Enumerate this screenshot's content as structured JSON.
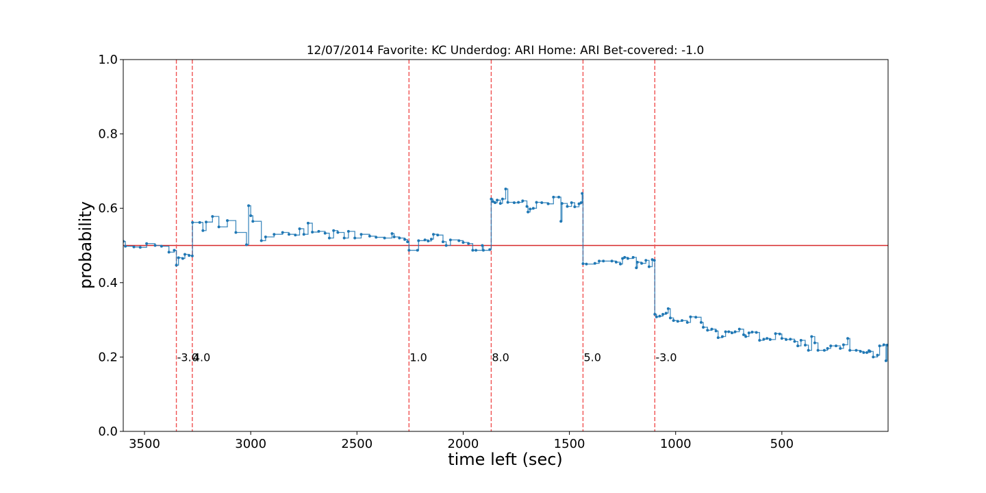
{
  "chart_data": {
    "type": "line",
    "title": "12/07/2014 Favorite: KC Underdog: ARI Home: ARI Bet-covered: -1.0",
    "xlabel": "time left (sec)",
    "ylabel": "probability",
    "xlim": [
      3600,
      0
    ],
    "ylim": [
      0.0,
      1.0
    ],
    "x_ticks": [
      3500,
      3000,
      2500,
      2000,
      1500,
      1000,
      500
    ],
    "x_tick_labels": [
      "3500",
      "3000",
      "2500",
      "2000",
      "1500",
      "1000",
      "500"
    ],
    "y_ticks": [
      0.0,
      0.2,
      0.4,
      0.6,
      0.8,
      1.0
    ],
    "y_tick_labels": [
      "0.0",
      "0.2",
      "0.4",
      "0.6",
      "0.8",
      "1.0"
    ],
    "grid": false,
    "reference_line": {
      "y": 0.5,
      "color": "#d62728"
    },
    "score_changes": [
      {
        "x": 3350,
        "label": "-3.0"
      },
      {
        "x": 3275,
        "label": "4.0"
      },
      {
        "x": 2255,
        "label": "1.0"
      },
      {
        "x": 1868,
        "label": "8.0"
      },
      {
        "x": 1436,
        "label": "5.0"
      },
      {
        "x": 1098,
        "label": "-3.0"
      }
    ],
    "series": [
      {
        "color": "#1f77b4",
        "points": [
          [
            3600,
            0.511
          ],
          [
            3590,
            0.498
          ],
          [
            3550,
            0.496
          ],
          [
            3520,
            0.495
          ],
          [
            3490,
            0.505
          ],
          [
            3450,
            0.5
          ],
          [
            3420,
            0.498
          ],
          [
            3385,
            0.482
          ],
          [
            3360,
            0.487
          ],
          [
            3350,
            0.447
          ],
          [
            3340,
            0.467
          ],
          [
            3320,
            0.465
          ],
          [
            3310,
            0.476
          ],
          [
            3290,
            0.473
          ],
          [
            3275,
            0.472
          ],
          [
            3274,
            0.562
          ],
          [
            3240,
            0.562
          ],
          [
            3225,
            0.54
          ],
          [
            3210,
            0.563
          ],
          [
            3180,
            0.578
          ],
          [
            3150,
            0.55
          ],
          [
            3110,
            0.567
          ],
          [
            3070,
            0.535
          ],
          [
            3020,
            0.502
          ],
          [
            3010,
            0.607
          ],
          [
            3000,
            0.58
          ],
          [
            2990,
            0.565
          ],
          [
            2950,
            0.513
          ],
          [
            2930,
            0.523
          ],
          [
            2890,
            0.53
          ],
          [
            2850,
            0.535
          ],
          [
            2820,
            0.53
          ],
          [
            2790,
            0.528
          ],
          [
            2770,
            0.545
          ],
          [
            2750,
            0.53
          ],
          [
            2730,
            0.56
          ],
          [
            2710,
            0.536
          ],
          [
            2680,
            0.538
          ],
          [
            2650,
            0.533
          ],
          [
            2630,
            0.52
          ],
          [
            2610,
            0.54
          ],
          [
            2590,
            0.535
          ],
          [
            2560,
            0.52
          ],
          [
            2540,
            0.538
          ],
          [
            2510,
            0.52
          ],
          [
            2480,
            0.53
          ],
          [
            2440,
            0.525
          ],
          [
            2410,
            0.522
          ],
          [
            2370,
            0.52
          ],
          [
            2335,
            0.532
          ],
          [
            2325,
            0.523
          ],
          [
            2300,
            0.52
          ],
          [
            2275,
            0.516
          ],
          [
            2262,
            0.51
          ],
          [
            2255,
            0.487
          ],
          [
            2215,
            0.487
          ],
          [
            2210,
            0.513
          ],
          [
            2180,
            0.515
          ],
          [
            2165,
            0.512
          ],
          [
            2150,
            0.517
          ],
          [
            2140,
            0.53
          ],
          [
            2120,
            0.528
          ],
          [
            2095,
            0.51
          ],
          [
            2080,
            0.5
          ],
          [
            2060,
            0.515
          ],
          [
            2020,
            0.513
          ],
          [
            2000,
            0.508
          ],
          [
            1975,
            0.505
          ],
          [
            1955,
            0.487
          ],
          [
            1940,
            0.487
          ],
          [
            1910,
            0.5
          ],
          [
            1905,
            0.487
          ],
          [
            1875,
            0.489
          ],
          [
            1868,
            0.625
          ],
          [
            1860,
            0.618
          ],
          [
            1850,
            0.615
          ],
          [
            1840,
            0.622
          ],
          [
            1825,
            0.613
          ],
          [
            1815,
            0.625
          ],
          [
            1800,
            0.652
          ],
          [
            1790,
            0.616
          ],
          [
            1760,
            0.615
          ],
          [
            1740,
            0.616
          ],
          [
            1720,
            0.62
          ],
          [
            1700,
            0.605
          ],
          [
            1695,
            0.59
          ],
          [
            1685,
            0.598
          ],
          [
            1670,
            0.6
          ],
          [
            1655,
            0.616
          ],
          [
            1630,
            0.615
          ],
          [
            1600,
            0.612
          ],
          [
            1575,
            0.63
          ],
          [
            1550,
            0.63
          ],
          [
            1540,
            0.565
          ],
          [
            1535,
            0.613
          ],
          [
            1510,
            0.605
          ],
          [
            1490,
            0.615
          ],
          [
            1475,
            0.604
          ],
          [
            1455,
            0.612
          ],
          [
            1445,
            0.615
          ],
          [
            1440,
            0.64
          ],
          [
            1436,
            0.451
          ],
          [
            1420,
            0.45
          ],
          [
            1380,
            0.452
          ],
          [
            1360,
            0.458
          ],
          [
            1340,
            0.458
          ],
          [
            1300,
            0.458
          ],
          [
            1280,
            0.455
          ],
          [
            1260,
            0.45
          ],
          [
            1250,
            0.465
          ],
          [
            1240,
            0.468
          ],
          [
            1225,
            0.465
          ],
          [
            1200,
            0.468
          ],
          [
            1185,
            0.44
          ],
          [
            1180,
            0.455
          ],
          [
            1160,
            0.452
          ],
          [
            1140,
            0.46
          ],
          [
            1125,
            0.443
          ],
          [
            1110,
            0.462
          ],
          [
            1100,
            0.46
          ],
          [
            1098,
            0.315
          ],
          [
            1090,
            0.308
          ],
          [
            1075,
            0.31
          ],
          [
            1060,
            0.315
          ],
          [
            1045,
            0.318
          ],
          [
            1035,
            0.33
          ],
          [
            1025,
            0.305
          ],
          [
            1010,
            0.298
          ],
          [
            990,
            0.296
          ],
          [
            970,
            0.298
          ],
          [
            945,
            0.293
          ],
          [
            930,
            0.308
          ],
          [
            905,
            0.307
          ],
          [
            880,
            0.293
          ],
          [
            870,
            0.28
          ],
          [
            850,
            0.272
          ],
          [
            830,
            0.275
          ],
          [
            810,
            0.27
          ],
          [
            800,
            0.252
          ],
          [
            780,
            0.255
          ],
          [
            765,
            0.268
          ],
          [
            750,
            0.268
          ],
          [
            735,
            0.265
          ],
          [
            720,
            0.268
          ],
          [
            700,
            0.275
          ],
          [
            680,
            0.26
          ],
          [
            670,
            0.255
          ],
          [
            655,
            0.265
          ],
          [
            640,
            0.267
          ],
          [
            620,
            0.266
          ],
          [
            605,
            0.245
          ],
          [
            585,
            0.248
          ],
          [
            570,
            0.25
          ],
          [
            555,
            0.247
          ],
          [
            530,
            0.263
          ],
          [
            510,
            0.262
          ],
          [
            500,
            0.25
          ],
          [
            480,
            0.247
          ],
          [
            460,
            0.248
          ],
          [
            440,
            0.242
          ],
          [
            425,
            0.23
          ],
          [
            410,
            0.245
          ],
          [
            390,
            0.232
          ],
          [
            375,
            0.218
          ],
          [
            360,
            0.255
          ],
          [
            345,
            0.238
          ],
          [
            330,
            0.218
          ],
          [
            300,
            0.218
          ],
          [
            285,
            0.223
          ],
          [
            270,
            0.23
          ],
          [
            245,
            0.23
          ],
          [
            225,
            0.223
          ],
          [
            210,
            0.233
          ],
          [
            190,
            0.25
          ],
          [
            180,
            0.218
          ],
          [
            150,
            0.218
          ],
          [
            130,
            0.215
          ],
          [
            115,
            0.212
          ],
          [
            100,
            0.212
          ],
          [
            90,
            0.217
          ],
          [
            85,
            0.215
          ],
          [
            70,
            0.2
          ],
          [
            50,
            0.205
          ],
          [
            40,
            0.23
          ],
          [
            20,
            0.233
          ],
          [
            10,
            0.19
          ],
          [
            5,
            0.232
          ]
        ]
      }
    ]
  }
}
